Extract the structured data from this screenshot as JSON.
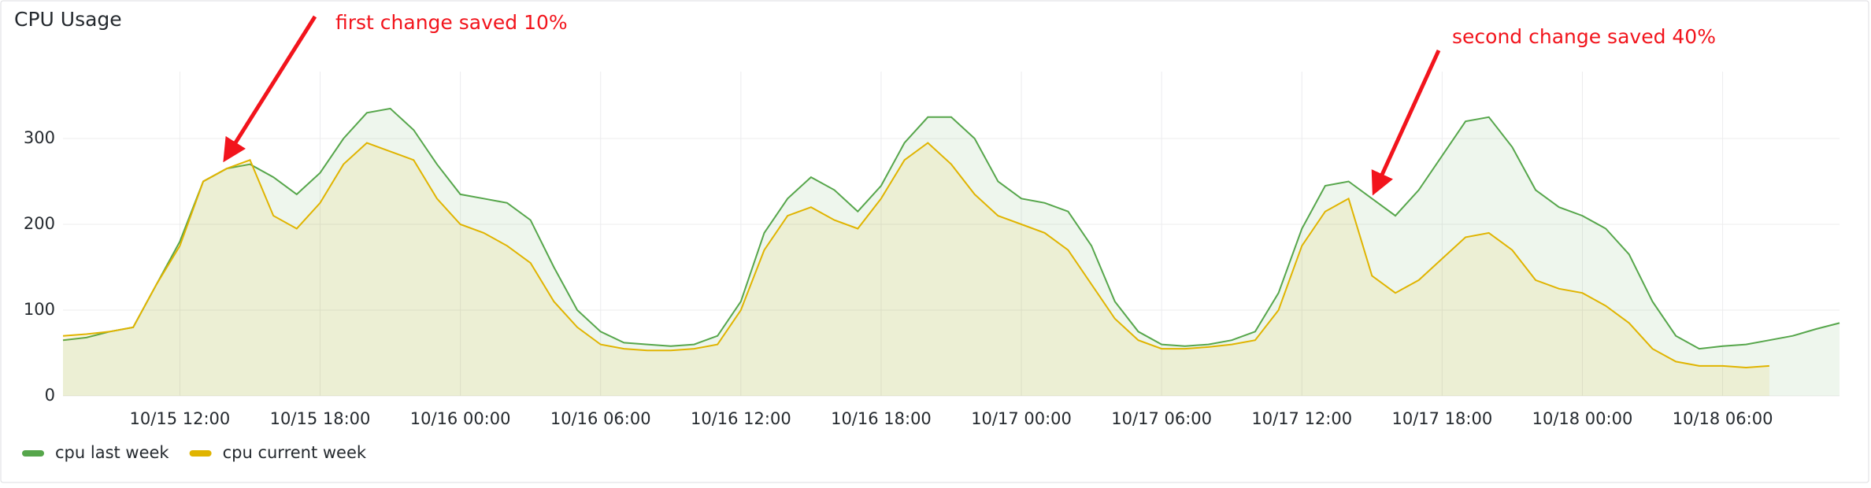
{
  "chart_data": {
    "type": "line",
    "title": "CPU Usage",
    "annotations": [
      "first change saved 10%",
      "second change saved 40%"
    ],
    "x": [
      "10/15 07:00",
      "10/15 08:00",
      "10/15 09:00",
      "10/15 10:00",
      "10/15 11:00",
      "10/15 12:00",
      "10/15 13:00",
      "10/15 14:00",
      "10/15 15:00",
      "10/15 16:00",
      "10/15 17:00",
      "10/15 18:00",
      "10/15 19:00",
      "10/15 20:00",
      "10/15 21:00",
      "10/15 22:00",
      "10/15 23:00",
      "10/16 00:00",
      "10/16 01:00",
      "10/16 02:00",
      "10/16 03:00",
      "10/16 04:00",
      "10/16 05:00",
      "10/16 06:00",
      "10/16 07:00",
      "10/16 08:00",
      "10/16 09:00",
      "10/16 10:00",
      "10/16 11:00",
      "10/16 12:00",
      "10/16 13:00",
      "10/16 14:00",
      "10/16 15:00",
      "10/16 16:00",
      "10/16 17:00",
      "10/16 18:00",
      "10/16 19:00",
      "10/16 20:00",
      "10/16 21:00",
      "10/16 22:00",
      "10/16 23:00",
      "10/17 00:00",
      "10/17 01:00",
      "10/17 02:00",
      "10/17 03:00",
      "10/17 04:00",
      "10/17 05:00",
      "10/17 06:00",
      "10/17 07:00",
      "10/17 08:00",
      "10/17 09:00",
      "10/17 10:00",
      "10/17 11:00",
      "10/17 12:00",
      "10/17 13:00",
      "10/17 14:00",
      "10/17 15:00",
      "10/17 16:00",
      "10/17 17:00",
      "10/17 18:00",
      "10/17 19:00",
      "10/17 20:00",
      "10/17 21:00",
      "10/17 22:00",
      "10/17 23:00",
      "10/18 00:00",
      "10/18 01:00",
      "10/18 02:00",
      "10/18 03:00",
      "10/18 04:00",
      "10/18 05:00",
      "10/18 06:00",
      "10/18 07:00",
      "10/18 08:00",
      "10/18 09:00",
      "10/18 10:00",
      "10/18 11:00"
    ],
    "series": [
      {
        "name": "cpu last week",
        "color": "#56a64b",
        "values": [
          65,
          68,
          75,
          80,
          130,
          180,
          250,
          265,
          270,
          255,
          235,
          260,
          300,
          330,
          335,
          310,
          270,
          235,
          230,
          225,
          205,
          150,
          100,
          75,
          62,
          60,
          58,
          60,
          70,
          110,
          190,
          230,
          255,
          240,
          215,
          245,
          295,
          325,
          325,
          300,
          250,
          230,
          225,
          215,
          175,
          110,
          75,
          60,
          58,
          60,
          65,
          75,
          120,
          195,
          245,
          250,
          230,
          210,
          240,
          280,
          320,
          325,
          290,
          240,
          220,
          210,
          195,
          165,
          110,
          70,
          55,
          58,
          60,
          65,
          70,
          78,
          85
        ]
      },
      {
        "name": "cpu current week",
        "color": "#e0b400",
        "values": [
          70,
          72,
          75,
          80,
          130,
          175,
          250,
          265,
          275,
          210,
          195,
          225,
          270,
          295,
          285,
          275,
          230,
          200,
          190,
          175,
          155,
          110,
          80,
          60,
          55,
          53,
          53,
          55,
          60,
          100,
          170,
          210,
          220,
          205,
          195,
          230,
          275,
          295,
          270,
          235,
          210,
          200,
          190,
          170,
          130,
          90,
          65,
          55,
          55,
          57,
          60,
          65,
          100,
          175,
          215,
          230,
          140,
          120,
          135,
          160,
          185,
          190,
          170,
          135,
          125,
          120,
          105,
          85,
          55,
          40,
          35,
          35,
          33,
          35,
          null,
          null,
          null
        ]
      }
    ],
    "xticks": [
      "10/15 12:00",
      "10/15 18:00",
      "10/16 00:00",
      "10/16 06:00",
      "10/16 12:00",
      "10/16 18:00",
      "10/17 00:00",
      "10/17 06:00",
      "10/17 12:00",
      "10/17 18:00",
      "10/18 00:00",
      "10/18 06:00"
    ],
    "ylim": [
      0,
      378
    ],
    "yticks": [
      0,
      100,
      200,
      300
    ],
    "grid": true
  }
}
